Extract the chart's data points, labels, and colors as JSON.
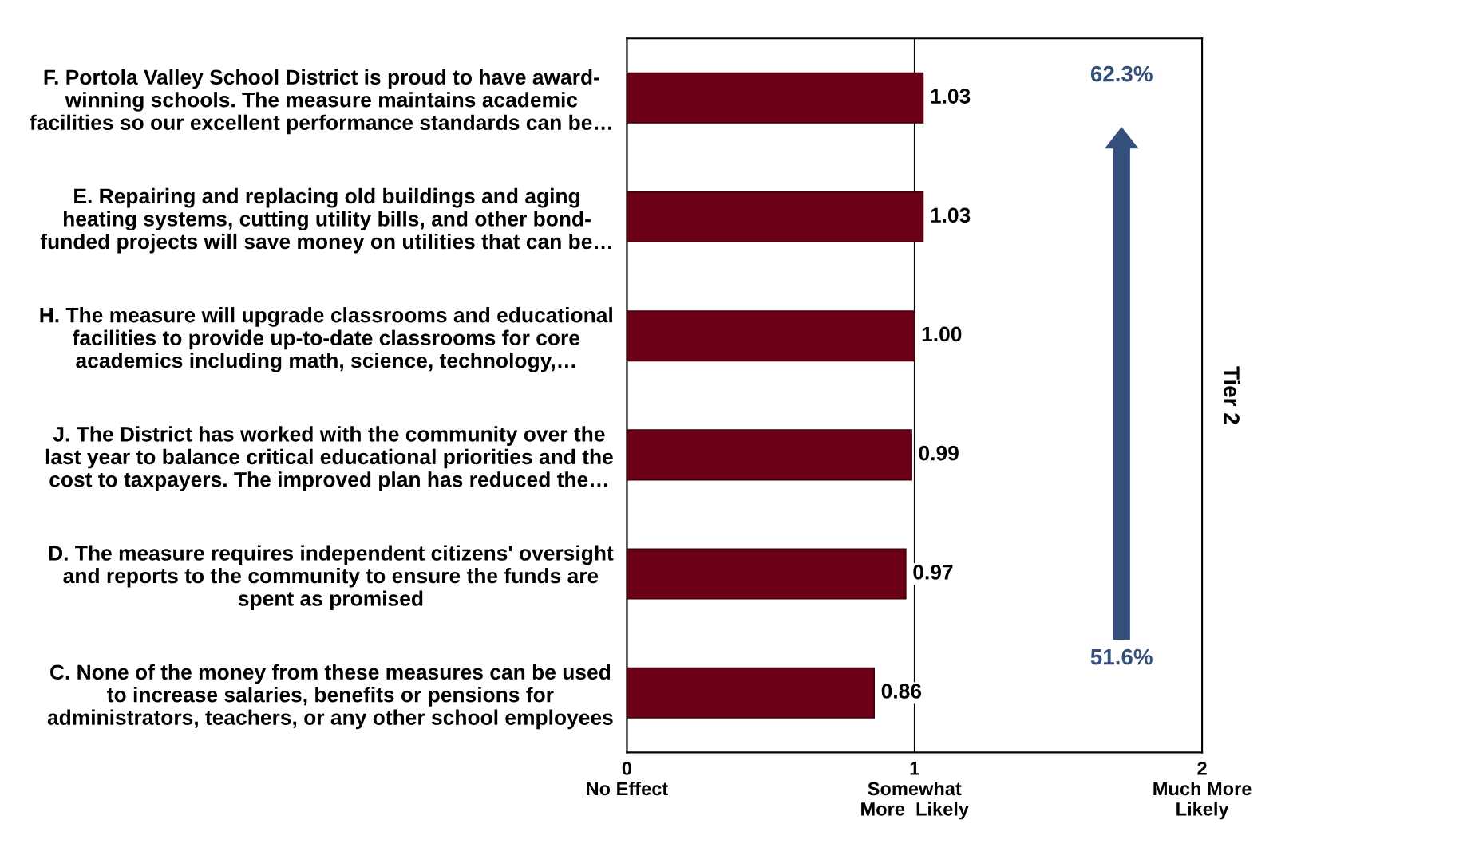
{
  "chart_data": {
    "type": "bar",
    "orientation": "horizontal",
    "categories": [
      "F. Portola Valley School District is proud to have award-\nwinning schools. The measure maintains academic\nfacilities so our excellent performance standards can be…",
      "E. Repairing and replacing old buildings and aging\nheating systems, cutting utility bills, and other bond-\nfunded projects will save money on utilities that can be…",
      "H. The measure will upgrade classrooms and educational\nfacilities to provide up-to-date classrooms for core\nacademics including math, science, technology,…",
      "J. The District has worked with the community over the\nlast year to balance critical educational priorities and the\ncost to taxpayers. The improved plan has reduced the…",
      "D. The measure requires independent citizens' oversight\nand reports to the community to ensure the funds are\nspent as promised",
      "C. None of the money from these measures can be used\nto increase salaries, benefits or pensions for\nadministrators, teachers, or any other school employees"
    ],
    "values": [
      1.03,
      1.03,
      1.0,
      0.99,
      0.97,
      0.86
    ],
    "value_labels": [
      "1.03",
      "1.03",
      "1.00",
      "0.99",
      "0.97",
      "0.86"
    ],
    "color": "#6b0016",
    "xlim": [
      0,
      2
    ],
    "xticks": [
      {
        "value": 0,
        "label": "0\nNo Effect"
      },
      {
        "value": 1,
        "label": "1\nSomewhat\nMore  Likely"
      },
      {
        "value": 2,
        "label": "2\nMuch More\nLikely"
      }
    ],
    "grid": "x",
    "annotations": [
      "62.3%",
      "51.6%",
      "Tier 2"
    ]
  }
}
